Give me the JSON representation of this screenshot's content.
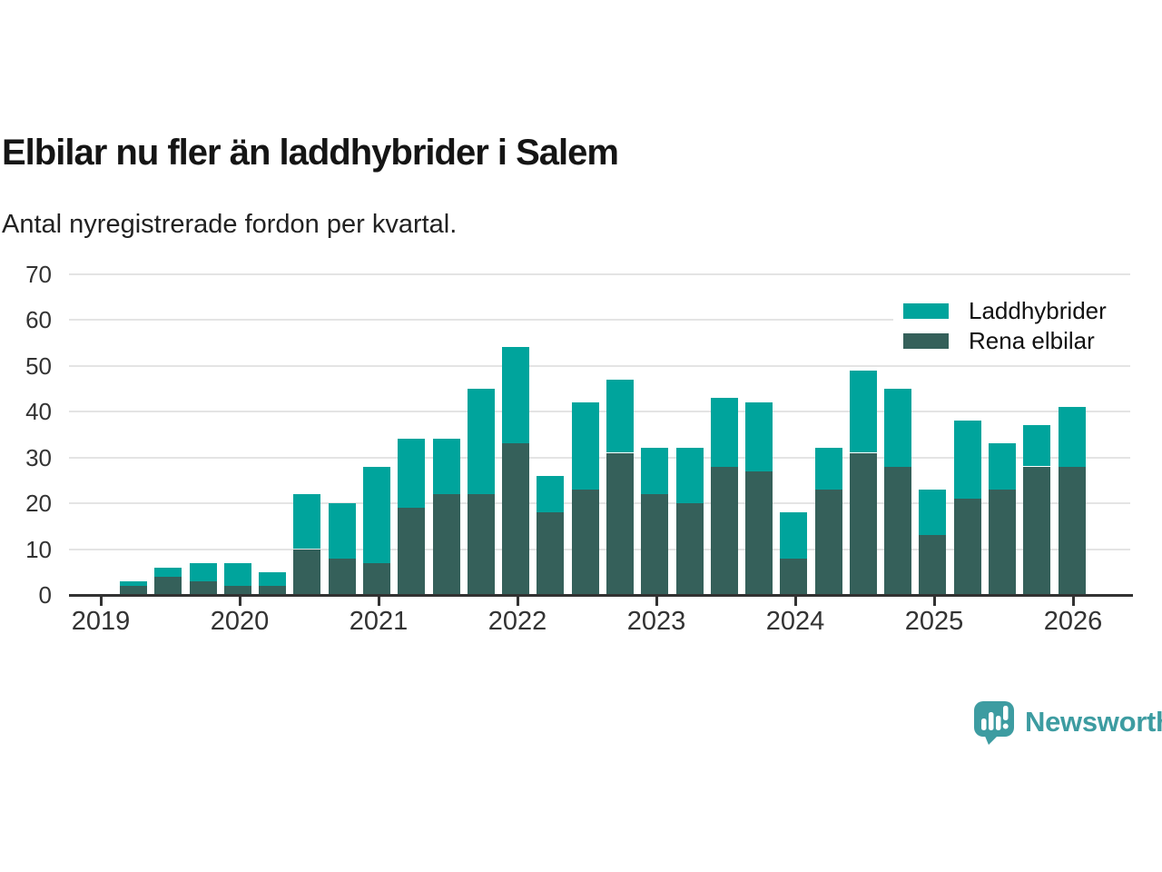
{
  "title": "Elbilar nu fler än laddhybrider i Salem",
  "subtitle": "Antal nyregistrerade fordon per kvartal.",
  "legend": [
    {
      "label": "Laddhybrider",
      "color": "#00a49c"
    },
    {
      "label": "Rena elbilar",
      "color": "#35605a"
    }
  ],
  "footer": {
    "brand": "Newsworthy",
    "brand_color": "#3d9ca1",
    "logo_icon": "newsworthy-speech-bubble-bar-chart-icon"
  },
  "colors": {
    "laddhybrider": "#00a49c",
    "rena_elbilar": "#35605a",
    "gridline": "#e4e4e4",
    "axis": "#323232",
    "text": "#333333"
  },
  "chart_data": {
    "type": "bar",
    "stacked": true,
    "title": "Elbilar nu fler än laddhybrider i Salem",
    "subtitle": "Antal nyregistrerade fordon per kvartal.",
    "xlabel": "",
    "ylabel": "",
    "ylim": [
      0,
      70
    ],
    "yticks": [
      0,
      10,
      20,
      30,
      40,
      50,
      60,
      70
    ],
    "grid": true,
    "legend_position": "top-right",
    "x": [
      "2019 Q2",
      "2019 Q3",
      "2019 Q4",
      "2020 Q1",
      "2020 Q2",
      "2020 Q3",
      "2020 Q4",
      "2021 Q1",
      "2021 Q2",
      "2021 Q3",
      "2021 Q4",
      "2022 Q1",
      "2022 Q2",
      "2022 Q3",
      "2022 Q4",
      "2023 Q1",
      "2023 Q2",
      "2023 Q3",
      "2023 Q4",
      "2024 Q1",
      "2024 Q2",
      "2024 Q3",
      "2024 Q4",
      "2025 Q1",
      "2025 Q2",
      "2025 Q3",
      "2025 Q4",
      "2026 Q1"
    ],
    "xticks": [
      2019,
      2020,
      2021,
      2022,
      2023,
      2024,
      2025,
      2026
    ],
    "stack_order_bottom_to_top": [
      "Rena elbilar",
      "Laddhybrider"
    ],
    "series": [
      {
        "name": "Rena elbilar",
        "color": "#35605a",
        "values": [
          2,
          4,
          3,
          2,
          2,
          10,
          8,
          7,
          19,
          22,
          22,
          33,
          18,
          23,
          31,
          22,
          20,
          28,
          27,
          8,
          23,
          31,
          28,
          13,
          21,
          23,
          28,
          28
        ]
      },
      {
        "name": "Laddhybrider",
        "color": "#00a49c",
        "values": [
          1,
          2,
          4,
          5,
          3,
          12,
          12,
          21,
          15,
          12,
          23,
          21,
          8,
          19,
          16,
          10,
          12,
          15,
          15,
          10,
          9,
          18,
          17,
          10,
          17,
          10,
          9,
          13
        ]
      }
    ],
    "totals": [
      3,
      6,
      7,
      7,
      5,
      22,
      20,
      28,
      34,
      34,
      45,
      54,
      26,
      42,
      47,
      32,
      32,
      43,
      42,
      18,
      32,
      49,
      45,
      23,
      38,
      33,
      37,
      41
    ]
  }
}
